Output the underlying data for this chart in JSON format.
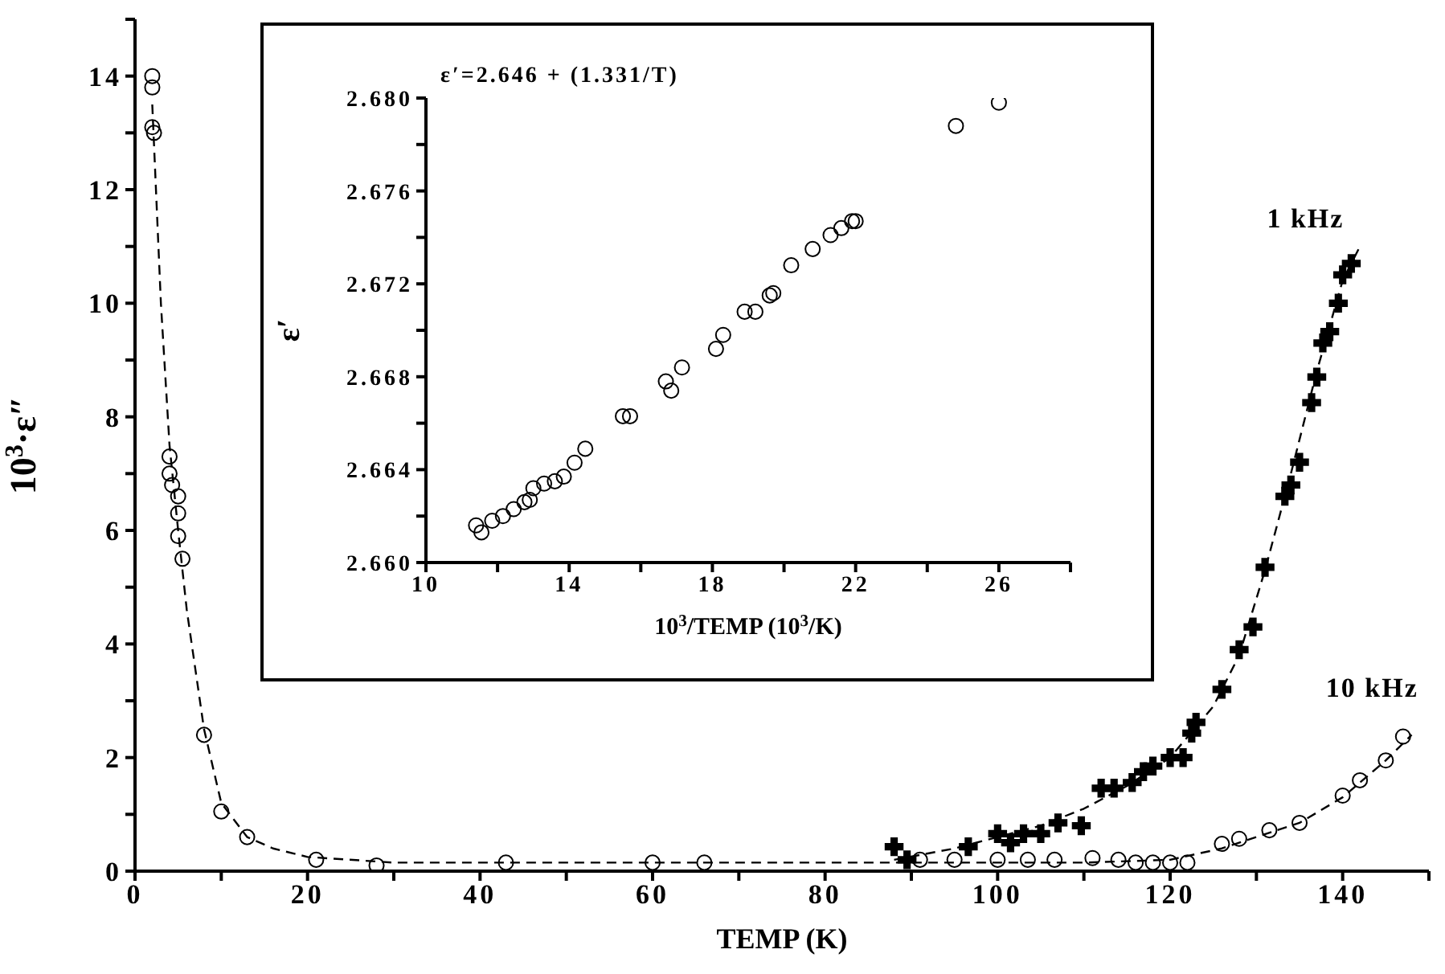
{
  "chart_data": [
    {
      "type": "scatter",
      "xlabel": "TEMP (K)",
      "ylabel": "10$^{3}$·ε″",
      "xlim": [
        0,
        150
      ],
      "ylim": [
        0,
        15
      ],
      "xticks": [
        0,
        {
          "value": 10,
          "label": null
        },
        20,
        {
          "value": 30,
          "label": null
        },
        40,
        {
          "value": 50,
          "label": null
        },
        60,
        {
          "value": 70,
          "label": null
        },
        80,
        {
          "value": 90,
          "label": null
        },
        100,
        {
          "value": 110,
          "label": null
        },
        120,
        {
          "value": 130,
          "label": null
        },
        140,
        {
          "value": 150,
          "label": null
        }
      ],
      "yticks": [
        0,
        {
          "value": 1,
          "label": null
        },
        2,
        {
          "value": 3,
          "label": null
        },
        4,
        {
          "value": 5,
          "label": null
        },
        6,
        {
          "value": 7,
          "label": null
        },
        8,
        {
          "value": 9,
          "label": null
        },
        10,
        {
          "value": 11,
          "label": null
        },
        12,
        {
          "value": 13,
          "label": null
        },
        14,
        {
          "value": 15,
          "label": null
        }
      ],
      "series": [
        {
          "name": "1 kHz",
          "marker": "cross",
          "color": "#000000",
          "x": [
            88,
            89.5,
            96.6,
            100,
            101.5,
            103,
            105,
            107,
            109.7,
            112,
            113.5,
            115.6,
            116.9,
            118,
            120,
            121.5,
            122.5,
            123,
            126,
            128,
            129.6,
            131,
            133.3,
            134,
            135,
            136.4,
            137,
            137.7,
            138.5,
            139.5,
            140,
            141
          ],
          "values": [
            0.43,
            0.2,
            0.43,
            0.66,
            0.5,
            0.66,
            0.66,
            0.85,
            0.8,
            1.46,
            1.46,
            1.56,
            1.75,
            1.85,
            2.0,
            2.0,
            2.43,
            2.62,
            3.2,
            3.9,
            4.3,
            5.35,
            6.6,
            6.8,
            7.2,
            8.25,
            8.7,
            9.3,
            9.5,
            10.0,
            10.5,
            10.7
          ]
        },
        {
          "name": "10 kHz",
          "marker": "circle",
          "color": "#000000",
          "x": [
            2,
            2,
            2,
            2.2,
            4,
            4,
            4.3,
            5,
            5,
            5,
            5.5,
            8,
            10,
            13,
            21,
            28,
            43,
            60,
            66,
            91,
            95,
            100,
            103.5,
            106.6,
            111,
            114,
            116,
            118,
            120,
            122,
            126,
            128,
            131.5,
            135,
            140,
            142,
            145,
            147
          ],
          "values": [
            14.0,
            13.8,
            13.1,
            13.0,
            7.3,
            7.0,
            6.8,
            6.6,
            6.3,
            5.9,
            5.5,
            2.4,
            1.05,
            0.6,
            0.2,
            0.1,
            0.15,
            0.15,
            0.15,
            0.2,
            0.2,
            0.2,
            0.2,
            0.2,
            0.23,
            0.2,
            0.15,
            0.15,
            0.15,
            0.15,
            0.48,
            0.57,
            0.72,
            0.85,
            1.33,
            1.6,
            1.95,
            2.37
          ]
        },
        {
          "type": "line",
          "line_style": "dashed",
          "marker": "none",
          "color": "#000000",
          "x": [
            88,
            95,
            100,
            105,
            110,
            115,
            120,
            125,
            128,
            131,
            134,
            137,
            140,
            142
          ],
          "values": [
            0.2,
            0.4,
            0.6,
            0.8,
            1.1,
            1.5,
            2.0,
            2.9,
            3.8,
            5.3,
            7.0,
            8.8,
            10.4,
            11.0
          ]
        },
        {
          "type": "line",
          "line_style": "dashed",
          "marker": "none",
          "color": "#000000",
          "x": [
            2,
            3,
            4,
            5,
            6,
            8,
            10,
            13,
            16,
            20,
            30,
            60,
            90,
            110,
            120,
            126,
            130,
            135,
            140,
            145,
            148
          ],
          "values": [
            13.5,
            10,
            7.5,
            6,
            4.6,
            2.5,
            1.2,
            0.6,
            0.4,
            0.25,
            0.15,
            0.15,
            0.15,
            0.15,
            0.2,
            0.4,
            0.6,
            0.85,
            1.3,
            1.95,
            2.4
          ]
        }
      ]
    },
    {
      "type": "scatter",
      "xlabel": "10$^{3}$/TEMP (10$^{3}$/K)",
      "ylabel": "ε′",
      "annotations": [
        "ε′=2.646 + (1.331/T)"
      ],
      "xlim": [
        10,
        28
      ],
      "ylim": [
        2.66,
        2.68
      ],
      "xticks": [
        10,
        {
          "value": 12,
          "label": null
        },
        14,
        {
          "value": 16,
          "label": null
        },
        18,
        {
          "value": 20,
          "label": null
        },
        22,
        {
          "value": 24,
          "label": null
        },
        26,
        {
          "value": 28,
          "label": null
        }
      ],
      "yticks": [
        {
          "value": 2.66,
          "label": "2.660"
        },
        {
          "value": 2.662,
          "label": null
        },
        {
          "value": 2.664,
          "label": "2.664"
        },
        {
          "value": 2.666,
          "label": null
        },
        {
          "value": 2.668,
          "label": "2.668"
        },
        {
          "value": 2.67,
          "label": null
        },
        {
          "value": 2.672,
          "label": "2.672"
        },
        {
          "value": 2.674,
          "label": null
        },
        {
          "value": 2.676,
          "label": "2.676"
        },
        {
          "value": 2.678,
          "label": null
        },
        {
          "value": 2.68,
          "label": "2.680"
        }
      ],
      "series": [
        {
          "marker": "circle",
          "color": "#000000",
          "x": [
            11.4,
            11.55,
            11.85,
            12.15,
            12.45,
            12.75,
            12.9,
            13.0,
            13.3,
            13.6,
            13.85,
            14.15,
            14.45,
            15.5,
            15.7,
            16.7,
            16.85,
            17.15,
            18.1,
            18.3,
            18.9,
            19.2,
            19.6,
            19.7,
            20.2,
            20.8,
            21.3,
            21.6,
            21.9,
            22.0,
            24.8,
            26.0
          ],
          "values": [
            2.6616,
            2.6613,
            2.6618,
            2.662,
            2.6623,
            2.6626,
            2.6627,
            2.6632,
            2.6634,
            2.6635,
            2.6637,
            2.6643,
            2.6649,
            2.6663,
            2.6663,
            2.6678,
            2.6674,
            2.6684,
            2.6692,
            2.6698,
            2.6708,
            2.6708,
            2.6715,
            2.6716,
            2.6728,
            2.6735,
            2.6741,
            2.6744,
            2.6747,
            2.6747,
            2.6788,
            2.6798
          ]
        }
      ]
    }
  ]
}
